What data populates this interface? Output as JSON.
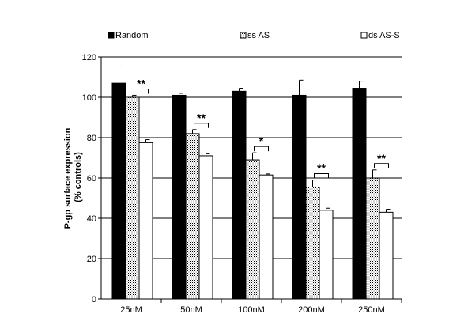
{
  "chart_data": {
    "type": "bar",
    "categories": [
      "25nM",
      "50nM",
      "100nM",
      "200nM",
      "250nM"
    ],
    "series": [
      {
        "name": "Random",
        "values": [
          107,
          101,
          103,
          101,
          104.5
        ],
        "errors": [
          8.5,
          1,
          1.5,
          7.5,
          3.5
        ],
        "fill": "black"
      },
      {
        "name": "ss AS",
        "values": [
          100,
          82,
          69,
          55.5,
          60
        ],
        "errors": [
          1,
          2,
          3.5,
          3.5,
          4
        ],
        "fill": "dotted"
      },
      {
        "name": "ds AS-S",
        "values": [
          77.5,
          71,
          61.5,
          44,
          43
        ],
        "errors": [
          1.5,
          1,
          0.5,
          1,
          1.5
        ],
        "fill": "white"
      }
    ],
    "significance": [
      "**",
      "**",
      "*",
      "**",
      "**"
    ],
    "ylabel_line1": "P-gp surface expression",
    "ylabel_line2": "(% controls)",
    "ylim": [
      0,
      120
    ],
    "yticks": [
      0,
      20,
      40,
      60,
      80,
      100,
      120
    ],
    "grid": true,
    "legend_position": "top"
  },
  "colors": {
    "bar_black": "#000000",
    "bar_white": "#ffffff",
    "grid": "#000000"
  }
}
